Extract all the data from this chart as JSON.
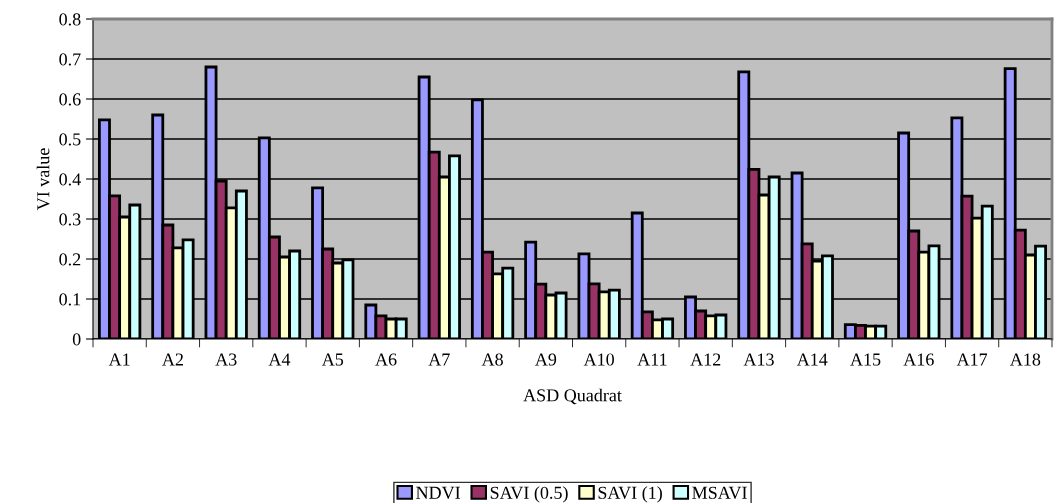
{
  "chart_data": {
    "type": "bar",
    "xlabel": "ASD Quadrat",
    "ylabel": "VI value",
    "categories": [
      "A1",
      "A2",
      "A3",
      "A4",
      "A5",
      "A6",
      "A7",
      "A8",
      "A9",
      "A10",
      "A11",
      "A12",
      "A13",
      "A14",
      "A15",
      "A16",
      "A17",
      "A18"
    ],
    "series": [
      {
        "name": "NDVI",
        "color": "#9999ff",
        "values": [
          0.548,
          0.56,
          0.68,
          0.503,
          0.378,
          0.085,
          0.655,
          0.598,
          0.242,
          0.213,
          0.315,
          0.105,
          0.668,
          0.415,
          0.036,
          0.515,
          0.553,
          0.676
        ]
      },
      {
        "name": "SAVI (0.5)",
        "color": "#993366",
        "values": [
          0.358,
          0.285,
          0.395,
          0.255,
          0.225,
          0.058,
          0.467,
          0.217,
          0.137,
          0.138,
          0.068,
          0.07,
          0.424,
          0.238,
          0.034,
          0.27,
          0.357,
          0.272
        ]
      },
      {
        "name": "SAVI (1)",
        "color": "#ffffcc",
        "values": [
          0.305,
          0.228,
          0.328,
          0.205,
          0.19,
          0.05,
          0.405,
          0.163,
          0.11,
          0.118,
          0.048,
          0.058,
          0.36,
          0.195,
          0.032,
          0.217,
          0.302,
          0.21
        ]
      },
      {
        "name": "MSAVI",
        "color": "#ccffff",
        "values": [
          0.335,
          0.248,
          0.37,
          0.22,
          0.198,
          0.05,
          0.458,
          0.177,
          0.115,
          0.122,
          0.05,
          0.06,
          0.405,
          0.208,
          0.032,
          0.233,
          0.332,
          0.232
        ]
      }
    ],
    "ylim": [
      0,
      0.8
    ],
    "yticks": [
      0,
      0.1,
      0.2,
      0.3,
      0.4,
      0.5,
      0.6,
      0.7,
      0.8
    ],
    "grid": "y",
    "legend": "bottom"
  }
}
